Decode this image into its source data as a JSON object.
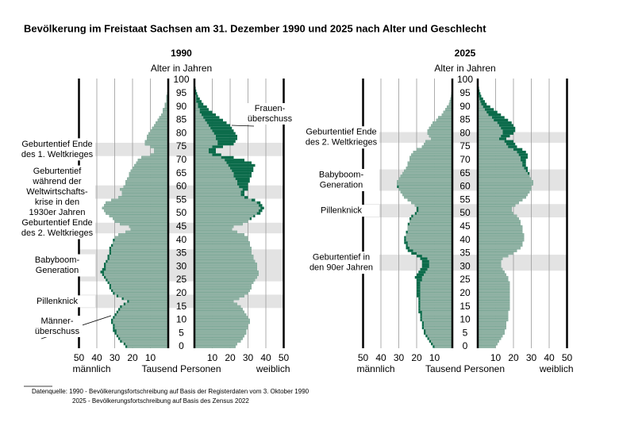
{
  "title": "Bevölkerung im Freistaat Sachsen am 31. Dezember 1990 und 2025 nach Alter und Geschlecht",
  "source": [
    "Datenquelle: 1990 - Bevölkerungsfortschreibung auf Basis der Registerdaten vom 3. Oktober 1990",
    "2025 - Bevölkerungsfortschreibung auf Basis des Zensus 2022"
  ],
  "chart_data": [
    {
      "type": "pyramid",
      "title": "1990",
      "y_label": "Alter in Jahren",
      "x_label": "Tausend Personen",
      "y": [
        0,
        1,
        2,
        3,
        4,
        5,
        6,
        7,
        8,
        9,
        10,
        11,
        12,
        13,
        14,
        15,
        16,
        17,
        18,
        19,
        20,
        21,
        22,
        23,
        24,
        25,
        26,
        27,
        28,
        29,
        30,
        31,
        32,
        33,
        34,
        35,
        36,
        37,
        38,
        39,
        40,
        41,
        42,
        43,
        44,
        45,
        46,
        47,
        48,
        49,
        50,
        51,
        52,
        53,
        54,
        55,
        56,
        57,
        58,
        59,
        60,
        61,
        62,
        63,
        64,
        65,
        66,
        67,
        68,
        69,
        70,
        71,
        72,
        73,
        74,
        75,
        76,
        77,
        78,
        79,
        80,
        81,
        82,
        83,
        84,
        85,
        86,
        87,
        88,
        89,
        90,
        91,
        92,
        93,
        94,
        95,
        96,
        97,
        98,
        99,
        100
      ],
      "ylim": [
        0,
        100
      ],
      "yticks": [
        0,
        5,
        10,
        15,
        20,
        25,
        30,
        35,
        40,
        45,
        50,
        55,
        60,
        65,
        70,
        75,
        80,
        85,
        90,
        95,
        100
      ],
      "xlim": [
        0,
        50
      ],
      "xticks": [
        10,
        20,
        30,
        40,
        50
      ],
      "grid": true,
      "surplus_color": "#0b6b4a",
      "band_color": "#e3e3e3",
      "series": [
        {
          "name": "männlich",
          "color": "#90b2a4",
          "values": [
            24,
            25,
            27,
            28,
            29,
            30,
            31,
            31,
            31,
            32,
            32,
            31,
            30,
            29,
            28,
            27,
            25,
            23,
            26,
            29,
            31,
            32,
            33,
            33,
            34,
            35,
            36,
            37,
            38,
            37,
            36,
            36,
            35,
            34,
            34,
            33,
            33,
            33,
            32,
            31,
            31,
            30,
            28,
            24,
            21,
            22,
            27,
            30,
            31,
            33,
            35,
            36,
            37,
            36,
            35,
            32,
            28,
            26,
            26,
            27,
            25,
            24,
            24,
            23,
            22,
            22,
            21,
            20,
            19,
            18,
            17,
            15,
            10,
            8,
            8,
            10,
            13,
            13,
            12,
            12,
            11,
            10,
            9,
            8,
            7,
            6,
            5,
            4,
            3,
            3,
            2,
            2,
            1,
            1,
            1,
            0.5,
            0.3,
            0.2,
            0.1,
            0.1,
            0.1
          ]
        },
        {
          "name": "weiblich",
          "color": "#90b2a4",
          "values": [
            23,
            24,
            26,
            27,
            28,
            29,
            29,
            30,
            30,
            31,
            31,
            30,
            29,
            28,
            27,
            26,
            24,
            22,
            25,
            28,
            30,
            31,
            32,
            32,
            33,
            34,
            35,
            36,
            36,
            35,
            35,
            35,
            34,
            33,
            33,
            32,
            32,
            32,
            31,
            31,
            30,
            30,
            28,
            24,
            21,
            22,
            27,
            30,
            32,
            34,
            37,
            38,
            39,
            38,
            37,
            34,
            30,
            28,
            28,
            30,
            30,
            30,
            31,
            31,
            32,
            32,
            33,
            33,
            34,
            32,
            28,
            22,
            15,
            12,
            12,
            16,
            22,
            23,
            24,
            24,
            23,
            22,
            21,
            20,
            18,
            16,
            14,
            12,
            10,
            8,
            7,
            5,
            4,
            3,
            2,
            1.5,
            1,
            0.7,
            0.4,
            0.3,
            0.2
          ]
        }
      ],
      "highlights": [
        {
          "lines": [
            "Geburtentief Ende",
            "des 1. Weltkrieges"
          ],
          "from": 72,
          "to": 76
        },
        {
          "lines": [
            "Geburtentief",
            "während der",
            "Weltwirtschafts-",
            "krise in den",
            "1930er Jahren"
          ],
          "from": 56,
          "to": 60
        },
        {
          "lines": [
            "Geburtentief Ende",
            "des 2. Weltkrieges"
          ],
          "from": 43,
          "to": 46
        },
        {
          "lines": [
            "Babyboom-",
            "Generation"
          ],
          "from": 25,
          "to": 36
        },
        {
          "lines": [
            "Pillenknick"
          ],
          "from": 15,
          "to": 19
        }
      ],
      "callouts": [
        {
          "lines": [
            "Frauen-",
            "überschuss"
          ]
        },
        {
          "lines": [
            "Männer-",
            "überschuss"
          ]
        }
      ]
    },
    {
      "type": "pyramid",
      "title": "2025",
      "y_label": "Alter in Jahren",
      "x_label": "Tausend Personen",
      "y": [
        0,
        1,
        2,
        3,
        4,
        5,
        6,
        7,
        8,
        9,
        10,
        11,
        12,
        13,
        14,
        15,
        16,
        17,
        18,
        19,
        20,
        21,
        22,
        23,
        24,
        25,
        26,
        27,
        28,
        29,
        30,
        31,
        32,
        33,
        34,
        35,
        36,
        37,
        38,
        39,
        40,
        41,
        42,
        43,
        44,
        45,
        46,
        47,
        48,
        49,
        50,
        51,
        52,
        53,
        54,
        55,
        56,
        57,
        58,
        59,
        60,
        61,
        62,
        63,
        64,
        65,
        66,
        67,
        68,
        69,
        70,
        71,
        72,
        73,
        74,
        75,
        76,
        77,
        78,
        79,
        80,
        81,
        82,
        83,
        84,
        85,
        86,
        87,
        88,
        89,
        90,
        91,
        92,
        93,
        94,
        95,
        96,
        97,
        98,
        99,
        100
      ],
      "ylim": [
        0,
        100
      ],
      "yticks": [
        0,
        5,
        10,
        15,
        20,
        25,
        30,
        35,
        40,
        45,
        50,
        55,
        60,
        65,
        70,
        75,
        80,
        85,
        90,
        95,
        100
      ],
      "xlim": [
        0,
        50
      ],
      "xticks": [
        10,
        20,
        30,
        40,
        50
      ],
      "grid": true,
      "surplus_color": "#0b6b4a",
      "band_color": "#e3e3e3",
      "series": [
        {
          "name": "männlich",
          "color": "#90b2a4",
          "values": [
            11,
            12,
            13,
            14,
            15,
            16,
            16,
            17,
            17,
            17,
            18,
            18,
            18,
            19,
            19,
            19,
            19,
            19,
            19,
            20,
            20,
            20,
            20,
            20,
            20,
            20,
            21,
            20,
            19,
            18,
            17,
            17,
            17,
            18,
            20,
            23,
            25,
            26,
            26,
            27,
            27,
            27,
            26,
            26,
            25,
            25,
            25,
            24,
            24,
            23,
            21,
            20,
            20,
            21,
            23,
            25,
            27,
            28,
            29,
            30,
            31,
            31,
            31,
            30,
            29,
            28,
            27,
            26,
            25,
            25,
            24,
            24,
            23,
            22,
            20,
            17,
            16,
            15,
            12,
            13,
            14,
            14,
            13,
            12,
            11,
            9,
            8,
            6,
            5,
            4,
            3,
            2,
            1.5,
            1,
            0.7,
            0.5,
            0.3,
            0.2,
            0.1,
            0.1,
            0.1
          ]
        },
        {
          "name": "weiblich",
          "color": "#90b2a4",
          "values": [
            10,
            11,
            12,
            13,
            14,
            15,
            15,
            16,
            16,
            16,
            17,
            17,
            17,
            17,
            18,
            18,
            18,
            18,
            18,
            18,
            18,
            18,
            18,
            18,
            18,
            17,
            17,
            16,
            15,
            14,
            13,
            13,
            13,
            14,
            17,
            20,
            22,
            24,
            25,
            25,
            26,
            26,
            26,
            25,
            25,
            25,
            24,
            24,
            23,
            22,
            20,
            19,
            19,
            21,
            23,
            25,
            27,
            28,
            29,
            30,
            30,
            31,
            31,
            30,
            29,
            29,
            28,
            28,
            27,
            27,
            27,
            28,
            28,
            27,
            25,
            22,
            21,
            20,
            16,
            18,
            20,
            21,
            21,
            20,
            19,
            17,
            15,
            13,
            11,
            9,
            7,
            5,
            4,
            3,
            2,
            1.5,
            1,
            0.7,
            0.4,
            0.3,
            0.2
          ]
        }
      ],
      "highlights": [
        {
          "lines": [
            "Geburtentief Ende",
            "des 2. Weltkrieges"
          ],
          "from": 77,
          "to": 80
        },
        {
          "lines": [
            "Babyboom-",
            "Generation"
          ],
          "from": 59,
          "to": 66
        },
        {
          "lines": [
            "Pillenknick"
          ],
          "from": 49,
          "to": 53
        },
        {
          "lines": [
            "Geburtentief in",
            "den 90er Jahren"
          ],
          "from": 29,
          "to": 34
        }
      ],
      "callouts": []
    }
  ]
}
